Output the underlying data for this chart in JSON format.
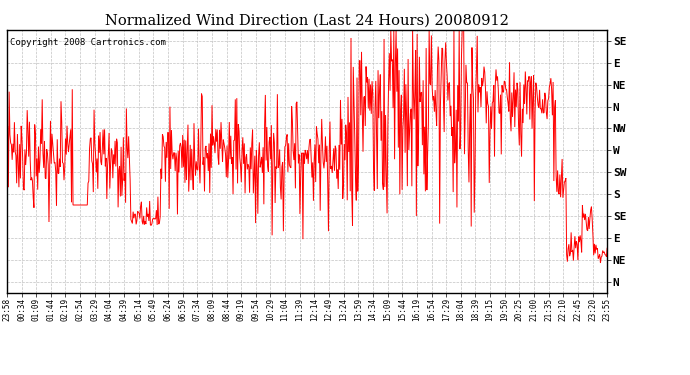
{
  "title": "Normalized Wind Direction (Last 24 Hours) 20080912",
  "copyright": "Copyright 2008 Cartronics.com",
  "line_color": "#FF0000",
  "bg_color": "#FFFFFF",
  "grid_color": "#BBBBBB",
  "ytick_labels": [
    "SE",
    "E",
    "NE",
    "N",
    "NW",
    "W",
    "SW",
    "S",
    "SE",
    "E",
    "NE",
    "N"
  ],
  "ytick_values": [
    11,
    10,
    9,
    8,
    7,
    6,
    5,
    4,
    3,
    2,
    1,
    0
  ],
  "ylim": [
    -0.5,
    11.5
  ],
  "xtick_labels": [
    "23:58",
    "00:34",
    "01:09",
    "01:44",
    "02:19",
    "02:54",
    "03:29",
    "04:04",
    "04:39",
    "05:14",
    "05:49",
    "06:24",
    "06:59",
    "07:34",
    "08:09",
    "08:44",
    "09:19",
    "09:54",
    "10:29",
    "11:04",
    "11:39",
    "12:14",
    "12:49",
    "13:24",
    "13:59",
    "14:34",
    "15:09",
    "15:44",
    "16:19",
    "16:54",
    "17:29",
    "18:04",
    "18:39",
    "19:15",
    "19:50",
    "20:25",
    "21:00",
    "21:35",
    "22:10",
    "22:45",
    "23:20",
    "23:55"
  ],
  "xlim": [
    0,
    41
  ],
  "figwidth": 6.9,
  "figheight": 3.75,
  "dpi": 100
}
